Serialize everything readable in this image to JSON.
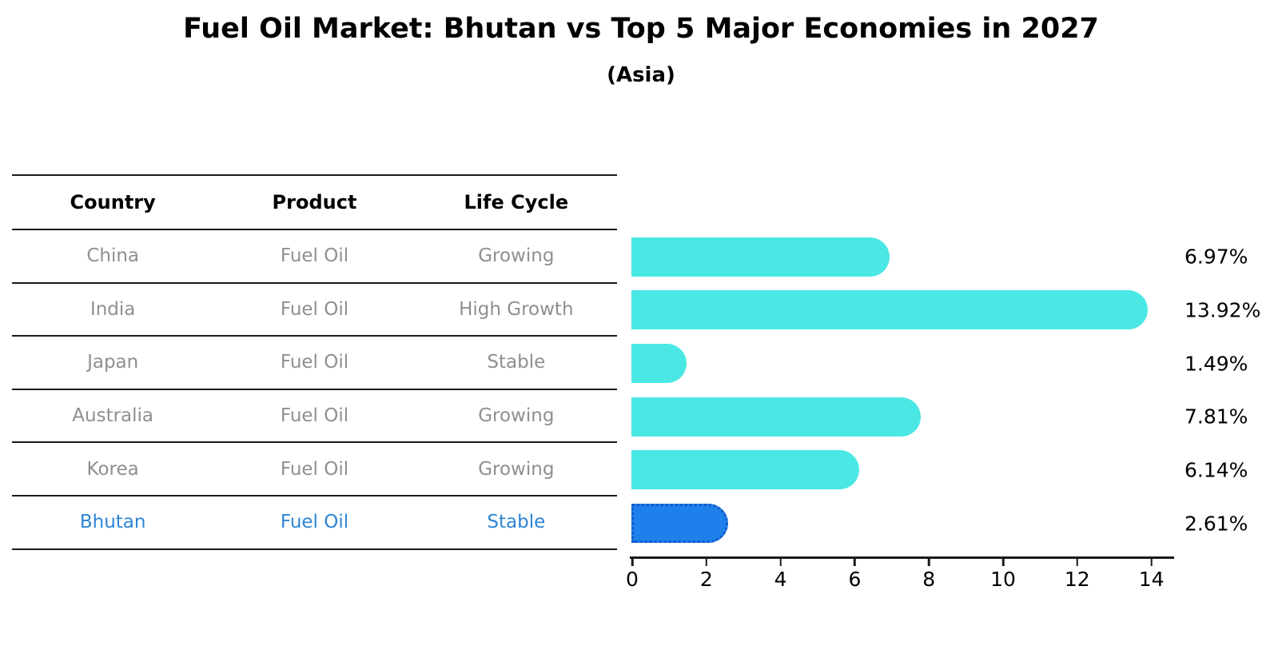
{
  "title": "Fuel Oil Market: Bhutan vs Top 5 Major Economies in 2027",
  "subtitle": "(Asia)",
  "table": {
    "headers": {
      "country": "Country",
      "product": "Product",
      "life_cycle": "Life Cycle"
    },
    "rows": [
      {
        "country": "China",
        "product": "Fuel Oil",
        "life_cycle": "Growing",
        "highlight": false
      },
      {
        "country": "India",
        "product": "Fuel Oil",
        "life_cycle": "High Growth",
        "highlight": false
      },
      {
        "country": "Japan",
        "product": "Fuel Oil",
        "life_cycle": "Stable",
        "highlight": false
      },
      {
        "country": "Australia",
        "product": "Fuel Oil",
        "life_cycle": "Growing",
        "highlight": false
      },
      {
        "country": "Korea",
        "product": "Fuel Oil",
        "life_cycle": "Growing",
        "highlight": false
      },
      {
        "country": "Bhutan",
        "product": "Fuel Oil",
        "life_cycle": "Stable",
        "highlight": true
      }
    ]
  },
  "chart_data": {
    "type": "bar",
    "orientation": "horizontal",
    "title": "Fuel Oil Market: Bhutan vs Top 5 Major Economies in 2027",
    "subtitle": "(Asia)",
    "categories": [
      "China",
      "India",
      "Japan",
      "Australia",
      "Korea",
      "Bhutan"
    ],
    "values": [
      6.97,
      13.92,
      1.49,
      7.81,
      6.14,
      2.61
    ],
    "value_labels": [
      "6.97%",
      "13.92%",
      "1.49%",
      "7.81%",
      "6.14%",
      "2.61%"
    ],
    "xlabel": "",
    "ylabel": "",
    "xlim": [
      0,
      14.7
    ],
    "x_ticks": [
      0,
      2,
      4,
      6,
      8,
      10,
      12,
      14
    ],
    "grid": false,
    "legend": "none",
    "highlight_category": "Bhutan",
    "colors": {
      "bar": "#4ae8e4",
      "highlight_bar": "#1e80ea",
      "highlight_border": "#1559c9",
      "highlight_text": "#2e86d6",
      "row_text": "#8f8f8f",
      "axis_line": "#1a1a1a"
    }
  }
}
